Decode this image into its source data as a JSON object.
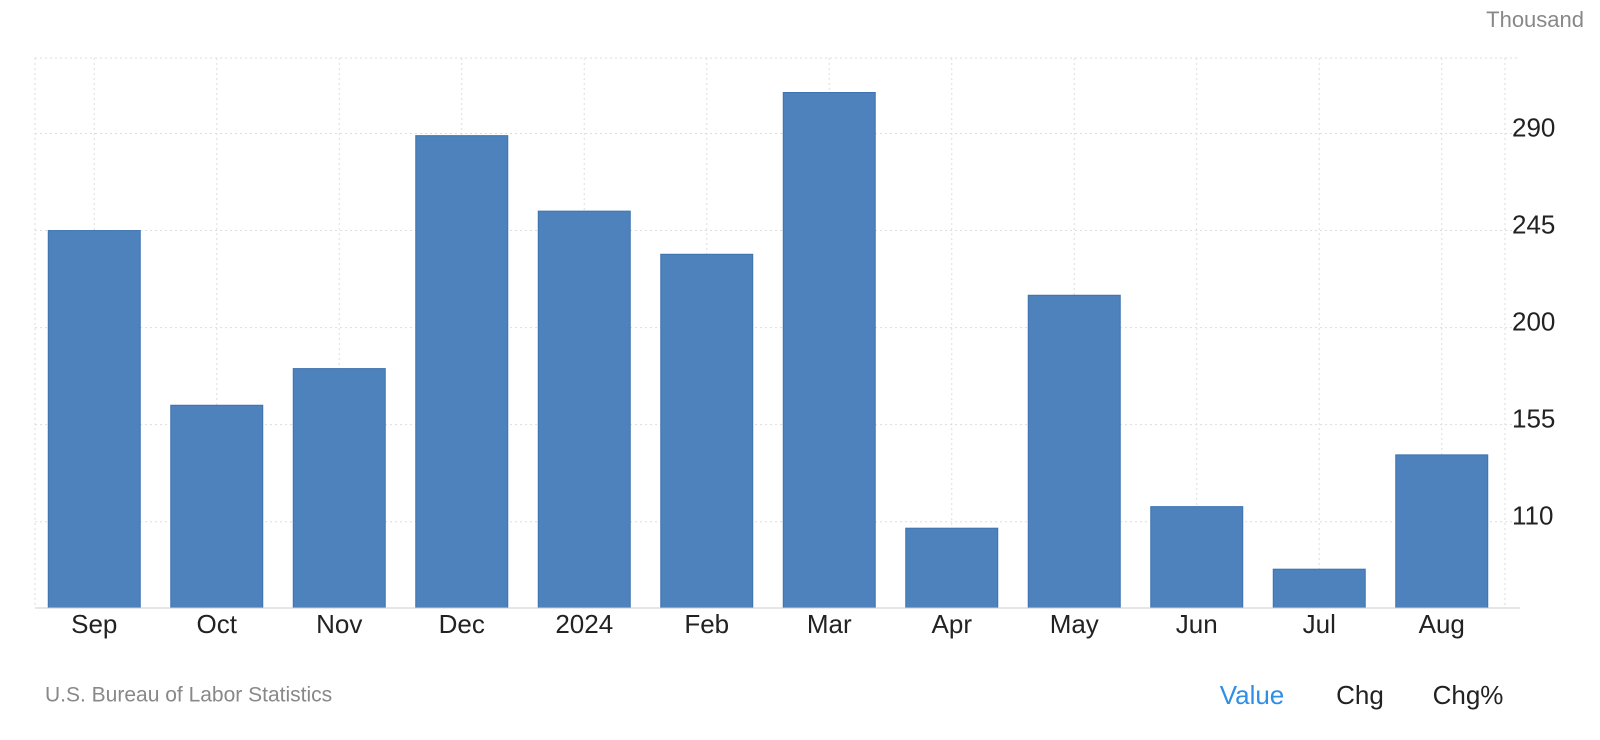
{
  "chart_data": {
    "type": "bar",
    "unit": "Thousand",
    "source": "U.S. Bureau of Labor Statistics",
    "categories": [
      "Sep",
      "Oct",
      "Nov",
      "Dec",
      "2024",
      "Feb",
      "Mar",
      "Apr",
      "May",
      "Jun",
      "Jul",
      "Aug"
    ],
    "values": [
      245,
      164,
      181,
      289,
      254,
      234,
      309,
      107,
      215,
      117,
      88,
      141
    ],
    "color": "#4d82bc",
    "ylim": [
      70,
      325
    ],
    "yticks": [
      110,
      155,
      200,
      245,
      290
    ],
    "grid": true
  },
  "controls": [
    "Value",
    "Chg",
    "Chg%"
  ]
}
